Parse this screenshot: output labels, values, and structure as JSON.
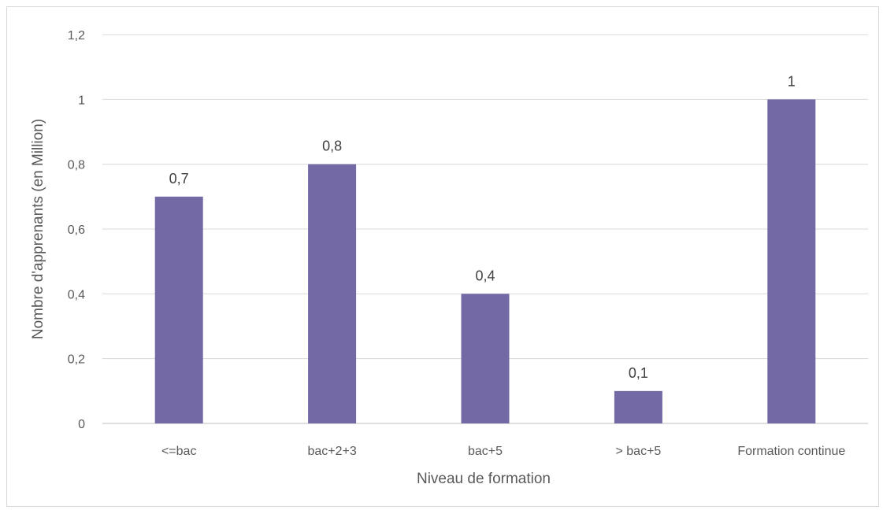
{
  "chart_data": {
    "type": "bar",
    "title": "",
    "xlabel": "Niveau de formation",
    "ylabel": "Nombre d'apprenants (en Million)",
    "categories": [
      "<=bac",
      "bac+2+3",
      "bac+5",
      "> bac+5",
      "Formation continue"
    ],
    "values": [
      0.7,
      0.8,
      0.4,
      0.1,
      1
    ],
    "data_labels": [
      "0,7",
      "0,8",
      "0,4",
      "0,1",
      "1"
    ],
    "ylim": [
      0,
      1.2
    ],
    "yticks": [
      0,
      0.2,
      0.4,
      0.6,
      0.8,
      1,
      1.2
    ],
    "ytick_labels": [
      "0",
      "0,2",
      "0,4",
      "0,6",
      "0,8",
      "1",
      "1,2"
    ],
    "grid": true,
    "legend": "none",
    "bar_color": "#7369a5",
    "grid_color": "#d9d9d9"
  }
}
